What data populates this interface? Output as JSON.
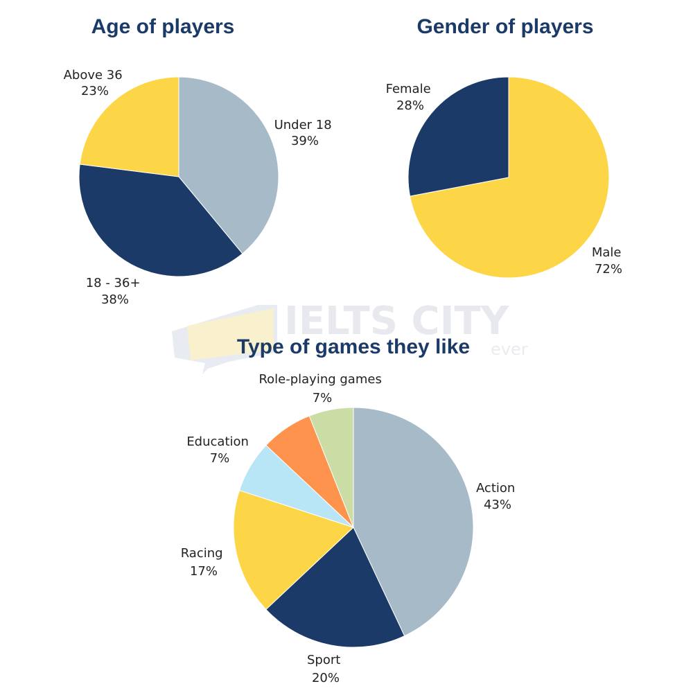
{
  "watermark": {
    "brand": "IELTS CITY",
    "tagline": "ever"
  },
  "colors": {
    "slate_blue": "#a6bac8",
    "navy": "#1b3a68",
    "yellow": "#fdd647",
    "light_blue": "#b8e6f7",
    "orange": "#fd934d",
    "sage": "#cbdca4"
  },
  "chart_data": [
    {
      "type": "pie",
      "title": "Age of players",
      "slices": [
        {
          "label": "Under 18",
          "value": 39,
          "value_label": "39%",
          "color": "#a6bac8"
        },
        {
          "label": "18 - 36+",
          "value": 38,
          "value_label": "38%",
          "color": "#1b3a68"
        },
        {
          "label": "Above 36",
          "value": 23,
          "value_label": "23%",
          "color": "#fdd647"
        }
      ]
    },
    {
      "type": "pie",
      "title": "Gender of players",
      "slices": [
        {
          "label": "Male",
          "value": 72,
          "value_label": "72%",
          "color": "#fdd647"
        },
        {
          "label": "Female",
          "value": 28,
          "value_label": "28%",
          "color": "#1b3a68"
        }
      ]
    },
    {
      "type": "pie",
      "title": "Type of games they like",
      "slices": [
        {
          "label": "Action",
          "value": 43,
          "value_label": "43%",
          "color": "#a6bac8"
        },
        {
          "label": "Sport",
          "value": 20,
          "value_label": "20%",
          "color": "#1b3a68"
        },
        {
          "label": "Racing",
          "value": 17,
          "value_label": "17%",
          "color": "#fdd647"
        },
        {
          "label": "Education",
          "value": 7,
          "value_label": "7%",
          "color": "#b8e6f7"
        },
        {
          "label": "Role-playing games",
          "value": 7,
          "value_label": "7%",
          "color": "#fd934d"
        },
        {
          "label": "",
          "value": 6,
          "value_label": "",
          "color": "#cbdca4"
        }
      ]
    }
  ]
}
